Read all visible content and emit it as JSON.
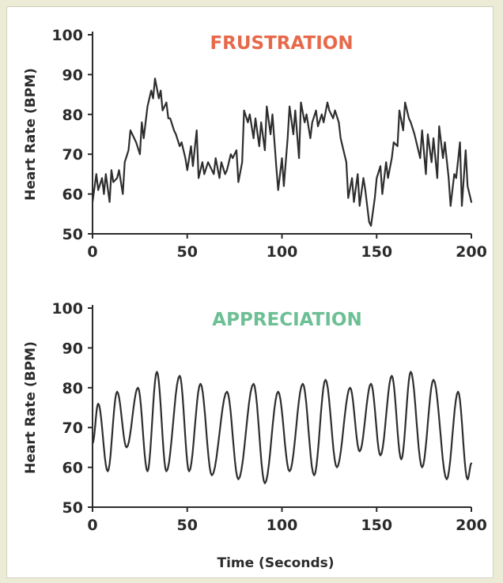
{
  "chart_data": [
    {
      "type": "line",
      "title": "FRUSTRATION",
      "title_color": "#e8694a",
      "xlabel": "",
      "ylabel": "Heart Rate (BPM)",
      "xlim": [
        0,
        200
      ],
      "ylim": [
        50,
        100
      ],
      "xticks": [
        0,
        50,
        100,
        150,
        200
      ],
      "yticks": [
        50,
        60,
        70,
        80,
        90,
        100
      ],
      "grid": false,
      "line_color": "#2e2e2e",
      "series": [
        {
          "x": [
            0,
            2,
            3,
            5,
            6,
            7,
            9,
            10,
            11,
            13,
            14,
            16,
            17,
            19,
            20,
            22,
            23,
            25,
            26,
            27,
            29,
            31,
            32,
            33,
            35,
            36,
            37,
            39,
            40,
            41,
            43,
            44,
            46,
            47,
            49,
            50,
            52,
            53,
            55,
            56,
            58,
            59,
            61,
            62,
            64,
            65,
            67,
            68,
            70,
            71,
            73,
            74,
            76,
            77,
            79,
            80,
            82,
            83,
            85,
            86,
            88,
            89,
            91,
            92,
            94,
            95,
            97,
            98,
            100,
            101,
            103,
            104,
            106,
            107,
            109,
            110,
            112,
            113,
            115,
            116,
            118,
            119,
            121,
            122,
            124,
            125,
            127,
            128,
            130,
            131,
            133,
            134,
            135,
            137,
            138,
            140,
            141,
            143,
            144,
            146,
            147,
            149,
            150,
            152,
            153,
            155,
            156,
            158,
            159,
            161,
            162,
            164,
            165,
            167,
            168,
            170,
            171,
            173,
            174,
            176,
            177,
            179,
            180,
            182,
            183,
            185,
            186,
            188,
            189,
            191,
            192,
            194,
            195,
            197,
            198,
            200
          ],
          "y": [
            58,
            65,
            61,
            64,
            60,
            65,
            58,
            66,
            63,
            64,
            66,
            60,
            68,
            71,
            76,
            74,
            73,
            70,
            78,
            74,
            82,
            86,
            84,
            89,
            84,
            86,
            81,
            83,
            79,
            79,
            76,
            75,
            72,
            73,
            69,
            66,
            72,
            67,
            76,
            64,
            68,
            65,
            68,
            67,
            65,
            69,
            64,
            68,
            65,
            66,
            70,
            69,
            71,
            63,
            68,
            81,
            78,
            80,
            74,
            79,
            72,
            78,
            71,
            82,
            75,
            80,
            67,
            61,
            69,
            62,
            74,
            82,
            75,
            81,
            69,
            83,
            78,
            80,
            74,
            78,
            81,
            77,
            80,
            78,
            83,
            81,
            79,
            81,
            78,
            74,
            70,
            68,
            59,
            64,
            58,
            65,
            57,
            64,
            61,
            53,
            52,
            59,
            64,
            67,
            60,
            68,
            64,
            69,
            73,
            72,
            81,
            76,
            83,
            79,
            78,
            75,
            73,
            69,
            76,
            65,
            75,
            68,
            74,
            64,
            77,
            69,
            73,
            64,
            57,
            65,
            64,
            73,
            57,
            71,
            62,
            58
          ]
        }
      ]
    },
    {
      "type": "line",
      "title": "APPRECIATION",
      "title_color": "#6dbf94",
      "xlabel": "Time (Seconds)",
      "ylabel": "Heart Rate (BPM)",
      "xlim": [
        0,
        200
      ],
      "ylim": [
        50,
        100
      ],
      "xticks": [
        0,
        50,
        100,
        150,
        200
      ],
      "yticks": [
        50,
        60,
        70,
        80,
        90,
        100
      ],
      "grid": false,
      "line_color": "#2e2e2e",
      "series": [
        {
          "peaks": [
            [
              0,
              66
            ],
            [
              3,
              76
            ],
            [
              8,
              59
            ],
            [
              13,
              79
            ],
            [
              18,
              65
            ],
            [
              24,
              80
            ],
            [
              29,
              59
            ],
            [
              34,
              84
            ],
            [
              39,
              59
            ],
            [
              46,
              83
            ],
            [
              51,
              59
            ],
            [
              57,
              81
            ],
            [
              63,
              58
            ],
            [
              71,
              79
            ],
            [
              77,
              57
            ],
            [
              85,
              81
            ],
            [
              91,
              56
            ],
            [
              98,
              79
            ],
            [
              104,
              59
            ],
            [
              111,
              81
            ],
            [
              117,
              58
            ],
            [
              123,
              82
            ],
            [
              129,
              60
            ],
            [
              136,
              80
            ],
            [
              141,
              64
            ],
            [
              147,
              81
            ],
            [
              152,
              63
            ],
            [
              158,
              83
            ],
            [
              163,
              62
            ],
            [
              168,
              84
            ],
            [
              174,
              60
            ],
            [
              180,
              82
            ],
            [
              187,
              57
            ],
            [
              193,
              79
            ],
            [
              198,
              57
            ],
            [
              200,
              61
            ]
          ]
        }
      ]
    }
  ]
}
